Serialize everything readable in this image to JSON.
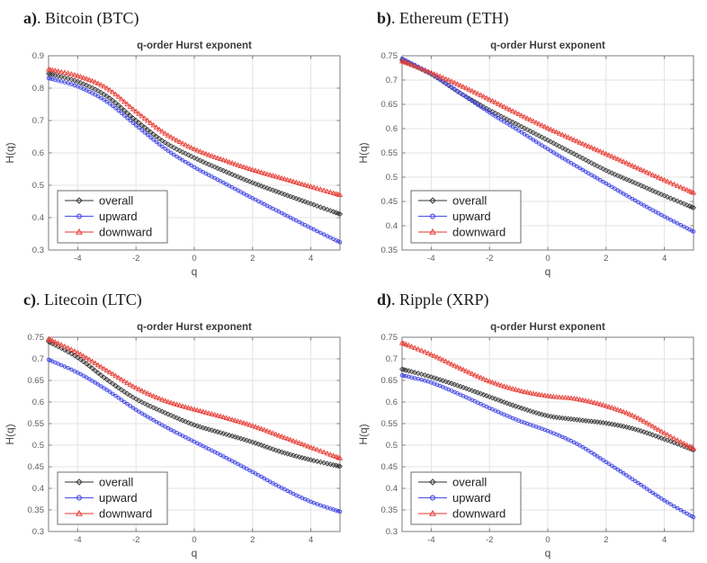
{
  "page": {
    "background": "#ffffff",
    "style": {
      "grid_color": "#e3e3e3",
      "axis_color": "#7d7d7d",
      "tick_text_color": "#5c5c5c",
      "title_color": "#3c3c3c",
      "legend_border_color": "#6e6e6e",
      "legend_bg": "#ffffff"
    }
  },
  "chart_data": [
    {
      "type": "line",
      "panel_letter": "a)",
      "panel_name": ". Bitcoin (BTC)",
      "title": "q-order Hurst exponent",
      "xlabel": "q",
      "ylabel": "H(q)",
      "xlim": [
        -5,
        5
      ],
      "ylim": [
        0.3,
        0.9
      ],
      "xticks": [
        -4,
        -2,
        0,
        2,
        4
      ],
      "yticks": [
        0.3,
        0.4,
        0.5,
        0.6,
        0.7,
        0.8,
        0.9
      ],
      "grid": true,
      "legend_position": "bottom-left",
      "x": [
        -5,
        -4,
        -3,
        -2,
        -1,
        0,
        1,
        2,
        3,
        4,
        5
      ],
      "series": [
        {
          "name": "overall",
          "marker": "diamond",
          "color": "#3d3d3d",
          "values": [
            0.845,
            0.82,
            0.775,
            0.7,
            0.632,
            0.585,
            0.545,
            0.508,
            0.475,
            0.443,
            0.411
          ]
        },
        {
          "name": "upward",
          "marker": "circle",
          "color": "#3f45e3",
          "values": [
            0.831,
            0.805,
            0.758,
            0.685,
            0.613,
            0.556,
            0.508,
            0.46,
            0.414,
            0.368,
            0.324
          ]
        },
        {
          "name": "downward",
          "marker": "triangle",
          "color": "#e8423a",
          "values": [
            0.858,
            0.838,
            0.8,
            0.728,
            0.66,
            0.612,
            0.578,
            0.548,
            0.522,
            0.496,
            0.47
          ]
        }
      ]
    },
    {
      "type": "line",
      "panel_letter": "b)",
      "panel_name": ". Ethereum (ETH)",
      "title": "q-order Hurst exponent",
      "xlabel": "q",
      "ylabel": "H(q)",
      "xlim": [
        -5,
        5
      ],
      "ylim": [
        0.35,
        0.75
      ],
      "xticks": [
        -4,
        -2,
        0,
        2,
        4
      ],
      "yticks": [
        0.35,
        0.4,
        0.45,
        0.5,
        0.55,
        0.6,
        0.65,
        0.7,
        0.75
      ],
      "grid": true,
      "legend_position": "bottom-left",
      "x": [
        -5,
        -4,
        -3,
        -2,
        -1,
        0,
        1,
        2,
        3,
        4,
        5
      ],
      "series": [
        {
          "name": "overall",
          "marker": "diamond",
          "color": "#3d3d3d",
          "values": [
            0.741,
            0.712,
            0.673,
            0.638,
            0.607,
            0.576,
            0.545,
            0.514,
            0.488,
            0.462,
            0.437
          ]
        },
        {
          "name": "upward",
          "marker": "circle",
          "color": "#3f45e3",
          "values": [
            0.744,
            0.713,
            0.673,
            0.633,
            0.596,
            0.558,
            0.522,
            0.487,
            0.452,
            0.419,
            0.388
          ]
        },
        {
          "name": "downward",
          "marker": "triangle",
          "color": "#e8423a",
          "values": [
            0.739,
            0.715,
            0.689,
            0.66,
            0.63,
            0.601,
            0.574,
            0.548,
            0.521,
            0.494,
            0.468
          ]
        }
      ]
    },
    {
      "type": "line",
      "panel_letter": "c)",
      "panel_name": ". Litecoin (LTC)",
      "title": "q-order Hurst exponent",
      "xlabel": "q",
      "ylabel": "H(q)",
      "xlim": [
        -5,
        5
      ],
      "ylim": [
        0.3,
        0.75
      ],
      "xticks": [
        -4,
        -2,
        0,
        2,
        4
      ],
      "yticks": [
        0.3,
        0.35,
        0.4,
        0.45,
        0.5,
        0.55,
        0.6,
        0.65,
        0.7,
        0.75
      ],
      "grid": true,
      "legend_position": "bottom-left",
      "x": [
        -5,
        -4,
        -3,
        -2,
        -1,
        0,
        1,
        2,
        3,
        4,
        5
      ],
      "series": [
        {
          "name": "overall",
          "marker": "diamond",
          "color": "#3d3d3d",
          "values": [
            0.74,
            0.703,
            0.652,
            0.607,
            0.575,
            0.547,
            0.527,
            0.507,
            0.484,
            0.466,
            0.451
          ]
        },
        {
          "name": "upward",
          "marker": "circle",
          "color": "#3f45e3",
          "values": [
            0.698,
            0.668,
            0.628,
            0.582,
            0.543,
            0.508,
            0.474,
            0.438,
            0.401,
            0.369,
            0.346
          ]
        },
        {
          "name": "downward",
          "marker": "triangle",
          "color": "#e8423a",
          "values": [
            0.746,
            0.714,
            0.673,
            0.633,
            0.603,
            0.583,
            0.565,
            0.545,
            0.52,
            0.495,
            0.47
          ]
        }
      ]
    },
    {
      "type": "line",
      "panel_letter": "d)",
      "panel_name": ". Ripple (XRP)",
      "title": "q-order Hurst exponent",
      "xlabel": "q",
      "ylabel": "H(q)",
      "xlim": [
        -5,
        5
      ],
      "ylim": [
        0.3,
        0.75
      ],
      "xticks": [
        -4,
        -2,
        0,
        2,
        4
      ],
      "yticks": [
        0.3,
        0.35,
        0.4,
        0.45,
        0.5,
        0.55,
        0.6,
        0.65,
        0.7,
        0.75
      ],
      "grid": true,
      "legend_position": "bottom-left",
      "x": [
        -5,
        -4,
        -3,
        -2,
        -1,
        0,
        1,
        2,
        3,
        4,
        5
      ],
      "series": [
        {
          "name": "overall",
          "marker": "diamond",
          "color": "#3d3d3d",
          "values": [
            0.676,
            0.658,
            0.636,
            0.612,
            0.588,
            0.568,
            0.559,
            0.551,
            0.537,
            0.514,
            0.489
          ]
        },
        {
          "name": "upward",
          "marker": "circle",
          "color": "#3f45e3",
          "values": [
            0.662,
            0.645,
            0.617,
            0.586,
            0.557,
            0.533,
            0.503,
            0.461,
            0.417,
            0.372,
            0.333
          ]
        },
        {
          "name": "downward",
          "marker": "triangle",
          "color": "#e8423a",
          "values": [
            0.737,
            0.71,
            0.678,
            0.648,
            0.627,
            0.614,
            0.607,
            0.591,
            0.566,
            0.528,
            0.492
          ]
        }
      ]
    }
  ]
}
